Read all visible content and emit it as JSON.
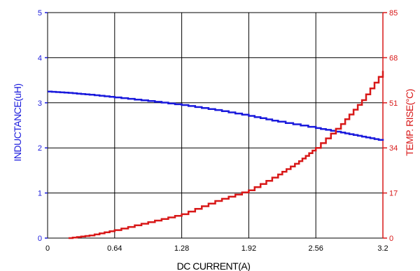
{
  "chart_data": {
    "type": "line",
    "title": "",
    "xlabel": "DC CURRENT(A)",
    "ylabel_left": "INDUCTANCE(uH)",
    "ylabel_right": "TEMP. RISE(°C)",
    "xlim": [
      0,
      3.2
    ],
    "ylim_left": [
      0,
      5
    ],
    "ylim_right": [
      0,
      85
    ],
    "x_ticks": [
      "0",
      "0.64",
      "1.28",
      "1.92",
      "2.56",
      "3.2"
    ],
    "y_left_ticks": [
      "0",
      "1",
      "2",
      "3",
      "4",
      "5"
    ],
    "y_right_ticks": [
      "0",
      "17",
      "34",
      "51",
      "68",
      "85"
    ],
    "grid": true,
    "colors": {
      "left_axis": "#1a1adc",
      "right_axis": "#d81818",
      "grid": "#000000"
    },
    "series": [
      {
        "axis": "left",
        "color": "#1a1adc",
        "x": [
          0,
          0.2,
          0.4,
          0.64,
          0.96,
          1.28,
          1.6,
          1.92,
          2.2,
          2.56,
          2.8,
          3.0,
          3.2
        ],
        "y": [
          3.25,
          3.22,
          3.18,
          3.12,
          3.04,
          2.95,
          2.84,
          2.71,
          2.58,
          2.44,
          2.34,
          2.25,
          2.16
        ]
      },
      {
        "axis": "right",
        "color": "#d81818",
        "x": [
          0.2,
          0.4,
          0.64,
          0.96,
          1.28,
          1.6,
          1.92,
          2.2,
          2.4,
          2.56,
          2.8,
          3.0,
          3.2
        ],
        "y": [
          0,
          1,
          3,
          6,
          9,
          14,
          18,
          24,
          29,
          34,
          43,
          52,
          63
        ]
      }
    ]
  }
}
